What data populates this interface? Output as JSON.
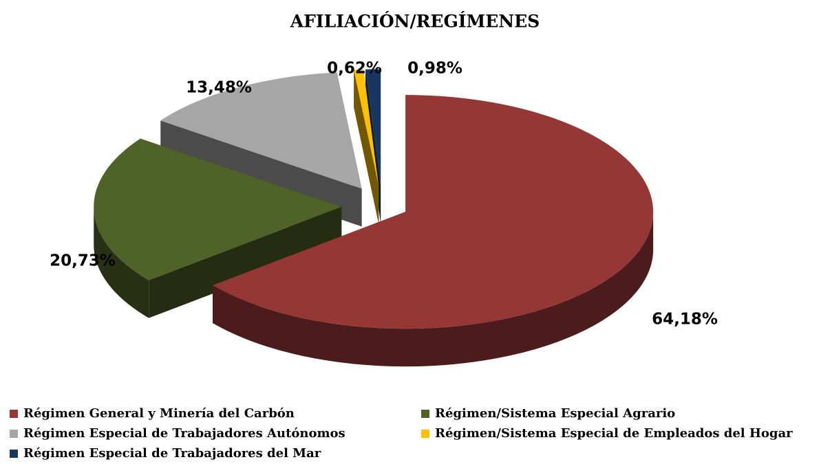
{
  "chart_data": {
    "type": "pie",
    "title": "AFILIACIÓN/REGÍMENES",
    "categories": [
      "Régimen General y Minería del Carbón",
      "Régimen/Sistema Especial Agrario",
      "Régimen Especial de Trabajadores Autónomos",
      "Régimen/Sistema Especial de Empleados del Hogar",
      "Régimen Especial de Trabajadores del Mar"
    ],
    "values": [
      64.18,
      20.73,
      13.48,
      0.62,
      0.98
    ],
    "value_labels": [
      "64,18%",
      "20,73%",
      "13,48%",
      "0,62%",
      "0,98%"
    ],
    "colors": [
      "#953735",
      "#4f6228",
      "#a6a6a6",
      "#ffc000",
      "#17375e"
    ],
    "legend": "bottom"
  }
}
